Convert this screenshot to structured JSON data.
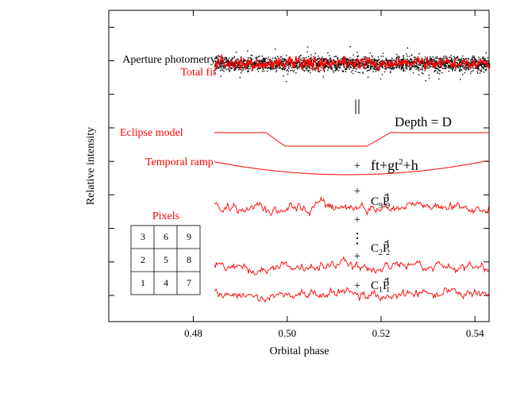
{
  "chart_data": {
    "type": "line",
    "title": "",
    "xlabel": "Orbital phase",
    "ylabel": "Relative intensity",
    "xlim": [
      0.462,
      0.543
    ],
    "x_ticks": [
      0.48,
      0.5,
      0.52,
      0.54
    ],
    "x_tick_labels": [
      "0.48",
      "0.50",
      "0.52",
      "0.54"
    ],
    "y_ticks_shown": 9,
    "y_tick_labels": [],
    "grid": false,
    "data_range": [
      0.4845,
      0.543
    ],
    "series": [
      {
        "name": "Aperture photometry",
        "kind": "scatter",
        "color": "#000000"
      },
      {
        "name": "Total fit",
        "kind": "line",
        "color": "#ff0000"
      },
      {
        "name": "Eclipse model",
        "kind": "line",
        "color": "#ff0000",
        "eclipse_points": {
          "x": [
            0.4845,
            0.4955,
            0.4995,
            0.517,
            0.522,
            0.543
          ],
          "y": [
            1,
            1,
            0,
            0,
            1,
            1
          ]
        }
      },
      {
        "name": "Temporal ramp",
        "kind": "line",
        "color": "#ff0000",
        "ramp_vertex_x": 0.513
      },
      {
        "name": "C9P9t",
        "kind": "line",
        "color": "#ff0000"
      },
      {
        "name": "C2P2t",
        "kind": "line",
        "color": "#ff0000"
      },
      {
        "name": "C1P1t",
        "kind": "line",
        "color": "#ff0000"
      }
    ]
  },
  "annotations": {
    "aperture": "Aperture photometry",
    "total_fit": "Total fit",
    "equals": "||",
    "eclipse_model": "Eclipse model",
    "depth": "Depth = D",
    "temporal_ramp": "Temporal ramp",
    "plus": "+",
    "ramp_formula": {
      "a": "ft+gt",
      "sup": "2",
      "b": "+h"
    },
    "c9": {
      "c": "C",
      "sub1": "9",
      "p": "P̂",
      "sup": "t",
      "sub2": "9"
    },
    "c2": {
      "c": "C",
      "sub1": "2",
      "p": "P̂",
      "sup": "t",
      "sub2": "2"
    },
    "c1": {
      "c": "C",
      "sub1": "1",
      "p": "P̂",
      "sup": "t",
      "sub2": "1"
    },
    "ellipsis": "⋮"
  },
  "pixels_inset": {
    "title": "Pixels",
    "grid": [
      [
        "3",
        "6",
        "9"
      ],
      [
        "2",
        "5",
        "8"
      ],
      [
        "1",
        "4",
        "7"
      ]
    ]
  },
  "colors": {
    "model": "#ff0000",
    "data": "#000000"
  }
}
